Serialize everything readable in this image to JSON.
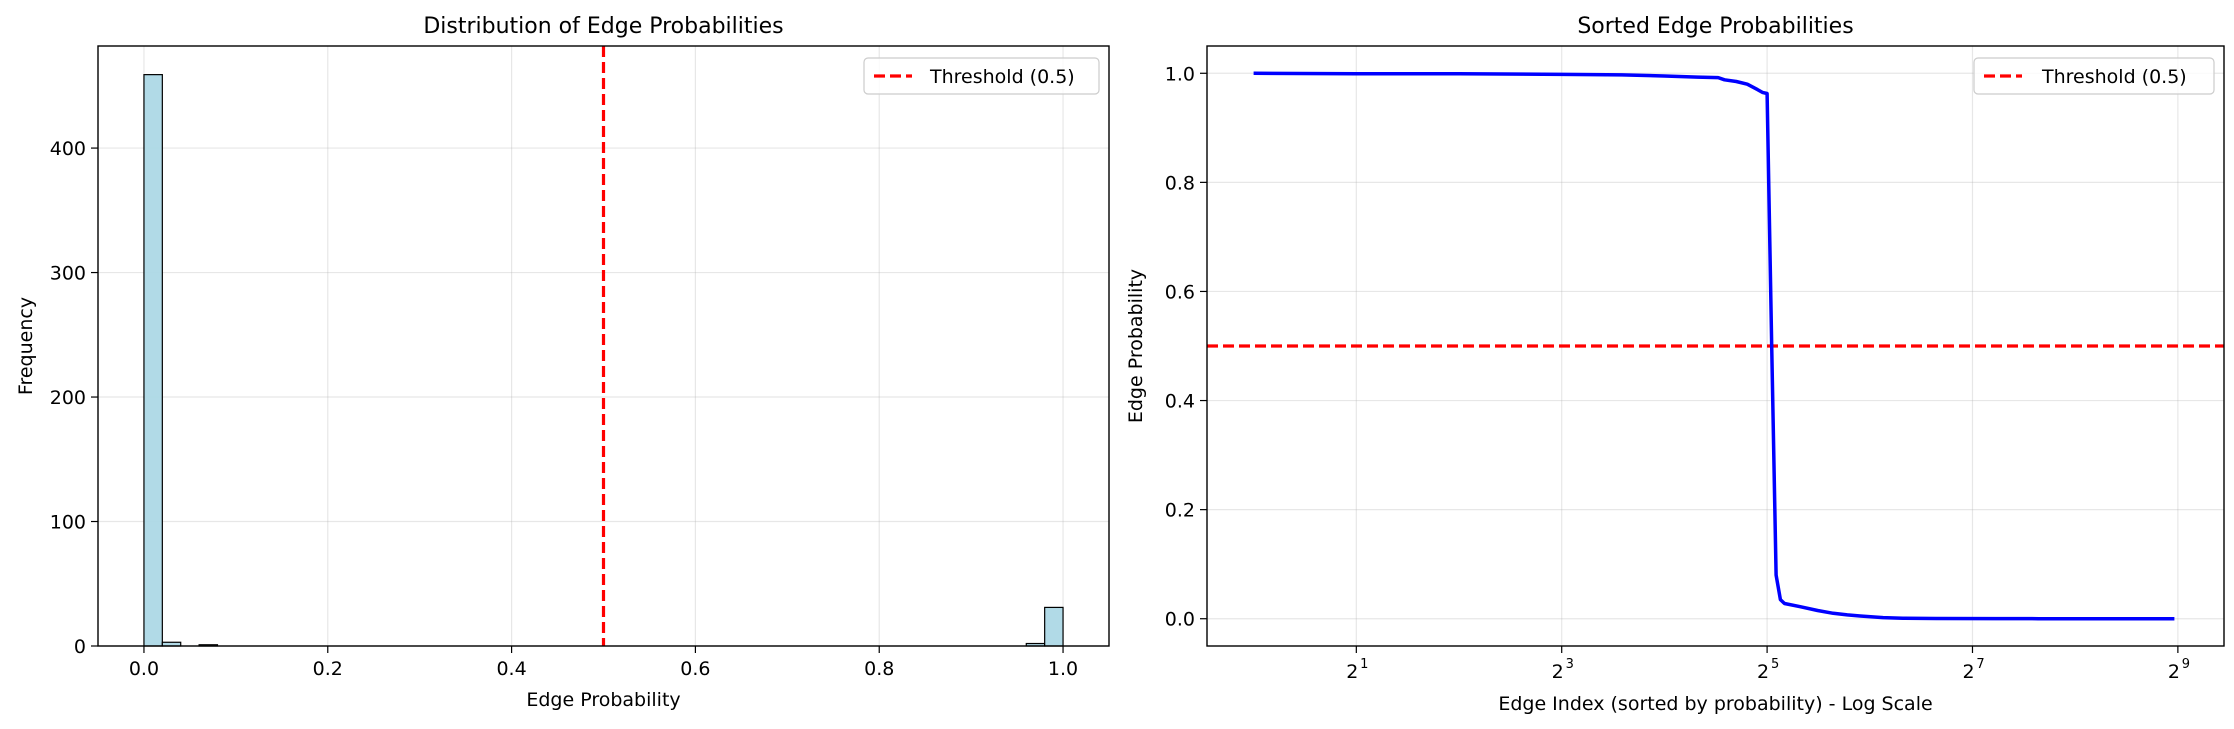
{
  "chart_data": [
    {
      "type": "bar",
      "title": "Distribution of Edge Probabilities",
      "xlabel": "Edge Probability",
      "ylabel": "Frequency",
      "xlim": [
        -0.05,
        1.05
      ],
      "ylim": [
        0,
        482
      ],
      "xticks": [
        0.0,
        0.2,
        0.4,
        0.6,
        0.8,
        1.0
      ],
      "xtick_labels": [
        "0.0",
        "0.2",
        "0.4",
        "0.6",
        "0.8",
        "1.0"
      ],
      "yticks": [
        0,
        100,
        200,
        300,
        400
      ],
      "ytick_labels": [
        "0",
        "100",
        "200",
        "300",
        "400"
      ],
      "grid": true,
      "bins": {
        "start": 0.0,
        "width": 0.02
      },
      "bars": [
        {
          "x": 0.0,
          "count": 459
        },
        {
          "x": 0.02,
          "count": 3
        },
        {
          "x": 0.06,
          "count": 1
        },
        {
          "x": 0.96,
          "count": 2
        },
        {
          "x": 0.98,
          "count": 31
        }
      ],
      "bar_color": "#add8e6",
      "bar_edge_color": "#000000",
      "threshold": {
        "value": 0.5,
        "label": "Threshold (0.5)",
        "color": "#ff0000"
      },
      "legend": {
        "position": "top-right",
        "entries": [
          "Threshold (0.5)"
        ]
      }
    },
    {
      "type": "line",
      "title": "Sorted Edge Probabilities",
      "xlabel": "Edge Index (sorted by probability) - Log Scale",
      "ylabel": "Edge Probability",
      "xscale": "log2",
      "xlim": [
        0.73,
        699
      ],
      "ylim": [
        -0.05,
        1.05
      ],
      "xticks": [
        {
          "value": 2,
          "base": "2",
          "exp": "1"
        },
        {
          "value": 8,
          "base": "2",
          "exp": "3"
        },
        {
          "value": 32,
          "base": "2",
          "exp": "5"
        },
        {
          "value": 128,
          "base": "2",
          "exp": "7"
        },
        {
          "value": 512,
          "base": "2",
          "exp": "9"
        }
      ],
      "yticks": [
        0.0,
        0.2,
        0.4,
        0.6,
        0.8,
        1.0
      ],
      "ytick_labels": [
        "0.0",
        "0.2",
        "0.4",
        "0.6",
        "0.8",
        "1.0"
      ],
      "grid": true,
      "line_color": "#0000ff",
      "series": [
        {
          "x": [
            1,
            2,
            4,
            8,
            12,
            16,
            20,
            23,
            24,
            26,
            28,
            30,
            31,
            32,
            33,
            34,
            35,
            36,
            40,
            45,
            50,
            55,
            60,
            70,
            80,
            100,
            150,
            200,
            300,
            400,
            500
          ],
          "y": [
            1.0,
            0.999,
            0.999,
            0.998,
            0.997,
            0.995,
            0.993,
            0.992,
            0.988,
            0.985,
            0.98,
            0.97,
            0.965,
            0.963,
            0.5,
            0.08,
            0.035,
            0.028,
            0.022,
            0.015,
            0.01,
            0.007,
            0.005,
            0.002,
            0.001,
            0.0005,
            0.0002,
            0.0001,
            0.0,
            0.0,
            0.0
          ]
        }
      ],
      "threshold": {
        "value": 0.5,
        "label": "Threshold (0.5)",
        "color": "#ff0000"
      },
      "legend": {
        "position": "top-right",
        "entries": [
          "Threshold (0.5)"
        ]
      }
    }
  ]
}
